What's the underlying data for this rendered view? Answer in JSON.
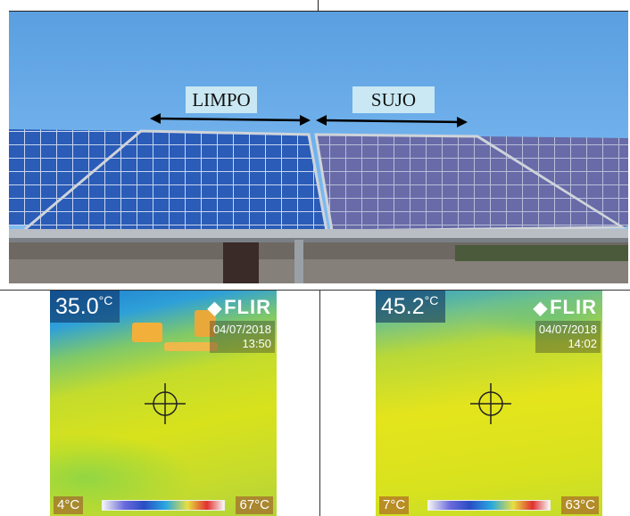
{
  "photo": {
    "label_clean": "LIMPO",
    "label_dirty": "SUJO"
  },
  "thermal_left": {
    "temperature": "35.0",
    "unit": "°C",
    "brand": "FLIR",
    "date": "04/07/2018",
    "time": "13:50",
    "scale_min": "4°C",
    "scale_max": "67°C"
  },
  "thermal_right": {
    "temperature": "45.2",
    "unit": "°C",
    "brand": "FLIR",
    "date": "04/07/2018",
    "time": "14:02",
    "scale_min": "7°C",
    "scale_max": "63°C"
  }
}
